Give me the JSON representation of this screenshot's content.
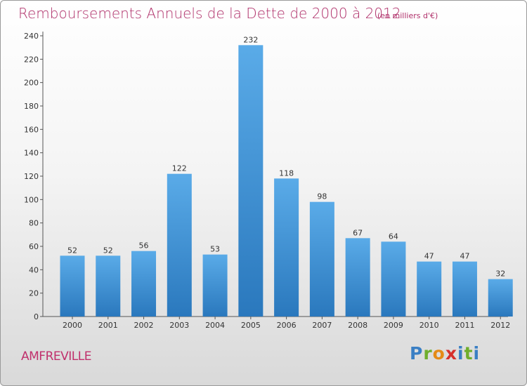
{
  "chart_data": {
    "type": "bar",
    "title": "Remboursements Annuels de la Dette de 2000 à 2012",
    "subtitle": "(en milliers d'€)",
    "categories": [
      "2000",
      "2001",
      "2002",
      "2003",
      "2004",
      "2005",
      "2006",
      "2007",
      "2008",
      "2009",
      "2010",
      "2011",
      "2012"
    ],
    "values": [
      52,
      52,
      56,
      122,
      53,
      232,
      118,
      98,
      67,
      64,
      47,
      47,
      32
    ],
    "ylim": [
      0,
      240
    ],
    "yticks": [
      0,
      20,
      40,
      60,
      80,
      100,
      120,
      140,
      160,
      180,
      200,
      220,
      240
    ],
    "grid": false,
    "legend": "none",
    "bar_color": "#3f93d6"
  },
  "footer": {
    "commune": "AMFREVILLE",
    "logo_text": "Proxiti"
  }
}
